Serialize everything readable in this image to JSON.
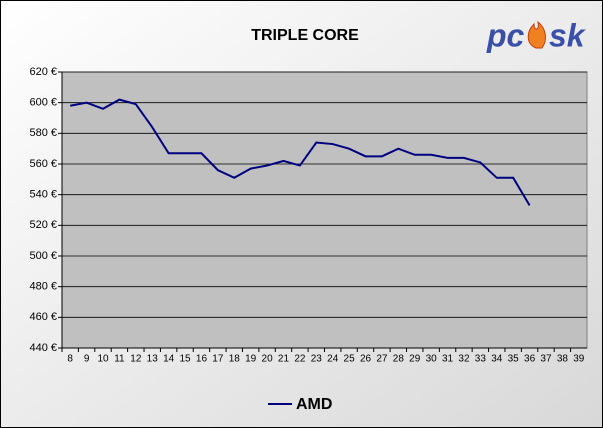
{
  "chart_data": {
    "type": "line",
    "title": "TRIPLE CORE",
    "logo": [
      "pc",
      "sk"
    ],
    "categories": [
      "8",
      "9",
      "10",
      "11",
      "12",
      "13",
      "14",
      "15",
      "16",
      "17",
      "18",
      "19",
      "20",
      "21",
      "22",
      "23",
      "24",
      "25",
      "26",
      "27",
      "28",
      "29",
      "30",
      "31",
      "32",
      "33",
      "34",
      "35",
      "36",
      "37",
      "38",
      "39"
    ],
    "series": [
      {
        "name": "AMD",
        "color": "#000080",
        "values": [
          598,
          600,
          596,
          602,
          599,
          584,
          567,
          567,
          567,
          556,
          551,
          557,
          559,
          562,
          559,
          574,
          573,
          570,
          565,
          565,
          570,
          566,
          566,
          564,
          564,
          561,
          551,
          551,
          533,
          null,
          null,
          null
        ]
      }
    ],
    "ylim": [
      440,
      620
    ],
    "yticks": [
      {
        "value": 440,
        "label": "440 €"
      },
      {
        "value": 460,
        "label": "460 €"
      },
      {
        "value": 480,
        "label": "480 €"
      },
      {
        "value": 500,
        "label": "500 €"
      },
      {
        "value": 520,
        "label": "520 €"
      },
      {
        "value": 540,
        "label": "540 €"
      },
      {
        "value": 560,
        "label": "560 €"
      },
      {
        "value": 580,
        "label": "580 €"
      },
      {
        "value": 600,
        "label": "600 €"
      },
      {
        "value": 620,
        "label": "620 €"
      }
    ],
    "grid": true,
    "legend": "bottom"
  }
}
